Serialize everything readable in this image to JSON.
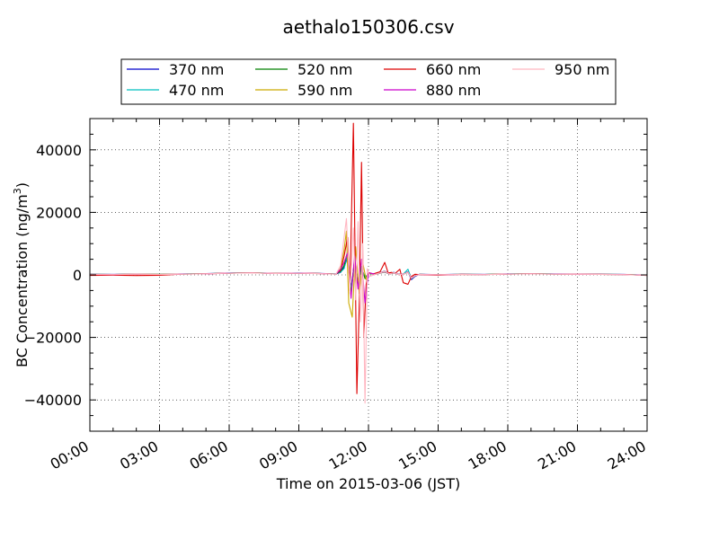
{
  "chart_data": {
    "type": "line",
    "title": "aethalo150306.csv",
    "xlabel": "Time on 2015-03-06 (JST)",
    "ylabel": "BC Concentration (ng/m",
    "ylabel_sup": "3",
    "ylabel_tail": ")",
    "x_unit": "hours",
    "xlim": [
      0,
      24
    ],
    "ylim": [
      -50000,
      50000
    ],
    "grid": true,
    "legend_position": "top, outside plot",
    "xticks": [
      {
        "x": 0,
        "label": "00:00"
      },
      {
        "x": 3,
        "label": "03:00"
      },
      {
        "x": 6,
        "label": "06:00"
      },
      {
        "x": 9,
        "label": "09:00"
      },
      {
        "x": 12,
        "label": "12:00"
      },
      {
        "x": 15,
        "label": "15:00"
      },
      {
        "x": 18,
        "label": "18:00"
      },
      {
        "x": 21,
        "label": "21:00"
      },
      {
        "x": 24,
        "label": "24:00"
      }
    ],
    "yticks": [
      {
        "y": 40000,
        "label": "40000"
      },
      {
        "y": 20000,
        "label": "20000"
      },
      {
        "y": 0,
        "label": "0"
      },
      {
        "y": -20000,
        "label": "−20000"
      },
      {
        "y": -40000,
        "label": "−40000"
      }
    ],
    "series": [
      {
        "name": "370 nm",
        "color": "#0000cc",
        "points": [
          [
            0,
            200
          ],
          [
            1,
            150
          ],
          [
            2,
            250
          ],
          [
            3,
            180
          ],
          [
            4,
            300
          ],
          [
            5,
            400
          ],
          [
            6,
            600
          ],
          [
            7,
            700
          ],
          [
            8,
            500
          ],
          [
            9,
            600
          ],
          [
            10,
            450
          ],
          [
            10.6,
            300
          ],
          [
            10.8,
            800
          ],
          [
            10.95,
            2500
          ],
          [
            11.1,
            5500
          ],
          [
            11.25,
            -4000
          ],
          [
            11.4,
            4000
          ],
          [
            11.55,
            -3000
          ],
          [
            11.7,
            2500
          ],
          [
            11.85,
            -1000
          ],
          [
            12,
            500
          ],
          [
            12.3,
            200
          ],
          [
            12.7,
            1200
          ],
          [
            12.9,
            500
          ],
          [
            13.1,
            800
          ],
          [
            13.3,
            200
          ],
          [
            13.5,
            300
          ],
          [
            13.7,
            1000
          ],
          [
            13.85,
            -1500
          ],
          [
            14,
            -500
          ],
          [
            14.2,
            200
          ],
          [
            15,
            100
          ],
          [
            16,
            200
          ],
          [
            17,
            150
          ],
          [
            18,
            300
          ],
          [
            19,
            400
          ],
          [
            20,
            300
          ],
          [
            21,
            250
          ],
          [
            22,
            200
          ],
          [
            23,
            150
          ],
          [
            24,
            -100
          ]
        ]
      },
      {
        "name": "470 nm",
        "color": "#00bfbf",
        "points": [
          [
            0,
            180
          ],
          [
            1,
            130
          ],
          [
            2,
            230
          ],
          [
            3,
            160
          ],
          [
            4,
            280
          ],
          [
            5,
            380
          ],
          [
            6,
            580
          ],
          [
            7,
            680
          ],
          [
            8,
            480
          ],
          [
            9,
            580
          ],
          [
            10,
            430
          ],
          [
            10.6,
            280
          ],
          [
            10.8,
            900
          ],
          [
            10.95,
            2000
          ],
          [
            11.1,
            6500
          ],
          [
            11.25,
            -5000
          ],
          [
            11.4,
            3500
          ],
          [
            11.55,
            -2500
          ],
          [
            11.7,
            2000
          ],
          [
            11.85,
            -800
          ],
          [
            12,
            400
          ],
          [
            12.3,
            180
          ],
          [
            12.7,
            1000
          ],
          [
            12.9,
            400
          ],
          [
            13.1,
            700
          ],
          [
            13.3,
            150
          ],
          [
            13.5,
            250
          ],
          [
            13.7,
            1800
          ],
          [
            13.85,
            -1200
          ],
          [
            14,
            -300
          ],
          [
            14.2,
            180
          ],
          [
            15,
            80
          ],
          [
            16,
            180
          ],
          [
            17,
            130
          ],
          [
            18,
            280
          ],
          [
            19,
            380
          ],
          [
            20,
            280
          ],
          [
            21,
            230
          ],
          [
            22,
            180
          ],
          [
            23,
            130
          ],
          [
            24,
            -120
          ]
        ]
      },
      {
        "name": "520 nm",
        "color": "#008000",
        "points": [
          [
            0,
            160
          ],
          [
            1,
            120
          ],
          [
            2,
            210
          ],
          [
            3,
            150
          ],
          [
            4,
            260
          ],
          [
            5,
            360
          ],
          [
            6,
            560
          ],
          [
            7,
            660
          ],
          [
            8,
            460
          ],
          [
            9,
            560
          ],
          [
            10,
            410
          ],
          [
            10.6,
            260
          ],
          [
            10.8,
            1200
          ],
          [
            10.95,
            3000
          ],
          [
            11.1,
            7500
          ],
          [
            11.25,
            -6000
          ],
          [
            11.4,
            5000
          ],
          [
            11.55,
            -3500
          ],
          [
            11.7,
            2800
          ],
          [
            11.85,
            -1200
          ],
          [
            12,
            600
          ],
          [
            12.3,
            200
          ],
          [
            12.7,
            900
          ],
          [
            12.9,
            300
          ],
          [
            13.1,
            600
          ],
          [
            13.3,
            120
          ],
          [
            13.5,
            220
          ],
          [
            13.7,
            800
          ],
          [
            13.85,
            -1000
          ],
          [
            14,
            -250
          ],
          [
            14.2,
            160
          ],
          [
            15,
            70
          ],
          [
            16,
            160
          ],
          [
            17,
            120
          ],
          [
            18,
            260
          ],
          [
            19,
            360
          ],
          [
            20,
            260
          ],
          [
            21,
            210
          ],
          [
            22,
            160
          ],
          [
            23,
            120
          ],
          [
            24,
            -130
          ]
        ]
      },
      {
        "name": "590 nm",
        "color": "#ccaa00",
        "points": [
          [
            0,
            170
          ],
          [
            1,
            130
          ],
          [
            2,
            220
          ],
          [
            3,
            160
          ],
          [
            4,
            270
          ],
          [
            5,
            370
          ],
          [
            6,
            570
          ],
          [
            7,
            670
          ],
          [
            8,
            470
          ],
          [
            9,
            570
          ],
          [
            10,
            420
          ],
          [
            10.6,
            270
          ],
          [
            10.8,
            2000
          ],
          [
            10.95,
            8000
          ],
          [
            11.05,
            14000
          ],
          [
            11.15,
            -9000
          ],
          [
            11.3,
            -13500
          ],
          [
            11.45,
            9000
          ],
          [
            11.6,
            -6000
          ],
          [
            11.75,
            4000
          ],
          [
            11.9,
            -1500
          ],
          [
            12,
            500
          ],
          [
            12.3,
            200
          ],
          [
            12.7,
            1100
          ],
          [
            12.9,
            350
          ],
          [
            13.1,
            700
          ],
          [
            13.3,
            130
          ],
          [
            13.5,
            230
          ],
          [
            13.7,
            900
          ],
          [
            13.85,
            -1100
          ],
          [
            14,
            -300
          ],
          [
            14.2,
            170
          ],
          [
            15,
            75
          ],
          [
            16,
            170
          ],
          [
            17,
            125
          ],
          [
            18,
            270
          ],
          [
            19,
            370
          ],
          [
            20,
            270
          ],
          [
            21,
            220
          ],
          [
            22,
            170
          ],
          [
            23,
            125
          ],
          [
            24,
            -110
          ]
        ]
      },
      {
        "name": "660 nm",
        "color": "#dd0000",
        "points": [
          [
            0,
            -150
          ],
          [
            1,
            -100
          ],
          [
            2,
            -200
          ],
          [
            3,
            -120
          ],
          [
            4,
            250
          ],
          [
            5,
            350
          ],
          [
            6,
            550
          ],
          [
            7,
            650
          ],
          [
            8,
            450
          ],
          [
            9,
            550
          ],
          [
            10,
            400
          ],
          [
            10.6,
            250
          ],
          [
            10.8,
            1500
          ],
          [
            10.95,
            6000
          ],
          [
            11.1,
            12000
          ],
          [
            11.2,
            -5000
          ],
          [
            11.35,
            48500
          ],
          [
            11.5,
            -38000
          ],
          [
            11.6,
            -10000
          ],
          [
            11.7,
            36000
          ],
          [
            11.8,
            -20000
          ],
          [
            11.9,
            -3000
          ],
          [
            12,
            800
          ],
          [
            12.2,
            300
          ],
          [
            12.5,
            1000
          ],
          [
            12.7,
            4000
          ],
          [
            12.85,
            600
          ],
          [
            13,
            800
          ],
          [
            13.15,
            500
          ],
          [
            13.35,
            1800
          ],
          [
            13.5,
            -2500
          ],
          [
            13.7,
            -3000
          ],
          [
            13.85,
            -500
          ],
          [
            14,
            200
          ],
          [
            14.2,
            100
          ],
          [
            15,
            -80
          ],
          [
            16,
            150
          ],
          [
            17,
            110
          ],
          [
            18,
            250
          ],
          [
            19,
            350
          ],
          [
            20,
            250
          ],
          [
            21,
            200
          ],
          [
            22,
            150
          ],
          [
            23,
            110
          ],
          [
            24,
            -150
          ]
        ]
      },
      {
        "name": "880 nm",
        "color": "#cc00cc",
        "points": [
          [
            0,
            150
          ],
          [
            1,
            110
          ],
          [
            2,
            200
          ],
          [
            3,
            140
          ],
          [
            4,
            250
          ],
          [
            5,
            350
          ],
          [
            6,
            550
          ],
          [
            7,
            650
          ],
          [
            8,
            450
          ],
          [
            9,
            550
          ],
          [
            10,
            400
          ],
          [
            10.6,
            250
          ],
          [
            10.8,
            1800
          ],
          [
            10.95,
            4000
          ],
          [
            11.1,
            7000
          ],
          [
            11.25,
            -7500
          ],
          [
            11.4,
            6000
          ],
          [
            11.55,
            -4500
          ],
          [
            11.7,
            5000
          ],
          [
            11.85,
            -9000
          ],
          [
            12,
            700
          ],
          [
            12.3,
            200
          ],
          [
            12.7,
            1000
          ],
          [
            12.9,
            320
          ],
          [
            13.1,
            650
          ],
          [
            13.3,
            120
          ],
          [
            13.5,
            220
          ],
          [
            13.7,
            850
          ],
          [
            13.85,
            -1000
          ],
          [
            14,
            -280
          ],
          [
            14.2,
            150
          ],
          [
            15,
            70
          ],
          [
            16,
            150
          ],
          [
            17,
            110
          ],
          [
            18,
            250
          ],
          [
            19,
            350
          ],
          [
            20,
            250
          ],
          [
            21,
            200
          ],
          [
            22,
            150
          ],
          [
            23,
            110
          ],
          [
            24,
            -140
          ]
        ]
      },
      {
        "name": "950 nm",
        "color": "#ffb6c1",
        "points": [
          [
            0,
            140
          ],
          [
            1,
            100
          ],
          [
            2,
            190
          ],
          [
            3,
            130
          ],
          [
            4,
            240
          ],
          [
            5,
            340
          ],
          [
            6,
            540
          ],
          [
            7,
            640
          ],
          [
            8,
            440
          ],
          [
            9,
            540
          ],
          [
            10,
            390
          ],
          [
            10.6,
            240
          ],
          [
            10.8,
            3000
          ],
          [
            10.95,
            12000
          ],
          [
            11.05,
            18000
          ],
          [
            11.2,
            -6000
          ],
          [
            11.35,
            15000
          ],
          [
            11.45,
            -8000
          ],
          [
            11.55,
            17000
          ],
          [
            11.65,
            -15000
          ],
          [
            11.75,
            10000
          ],
          [
            11.85,
            -41000
          ],
          [
            11.95,
            2000
          ],
          [
            12.05,
            -500
          ],
          [
            12.3,
            200
          ],
          [
            12.7,
            1100
          ],
          [
            12.9,
            330
          ],
          [
            13.1,
            680
          ],
          [
            13.3,
            130
          ],
          [
            13.5,
            230
          ],
          [
            13.7,
            870
          ],
          [
            13.85,
            -1050
          ],
          [
            14,
            -290
          ],
          [
            14.2,
            140
          ],
          [
            15,
            65
          ],
          [
            16,
            140
          ],
          [
            17,
            100
          ],
          [
            18,
            240
          ],
          [
            19,
            340
          ],
          [
            20,
            240
          ],
          [
            21,
            190
          ],
          [
            22,
            140
          ],
          [
            23,
            100
          ],
          [
            24,
            -150
          ]
        ]
      }
    ]
  }
}
